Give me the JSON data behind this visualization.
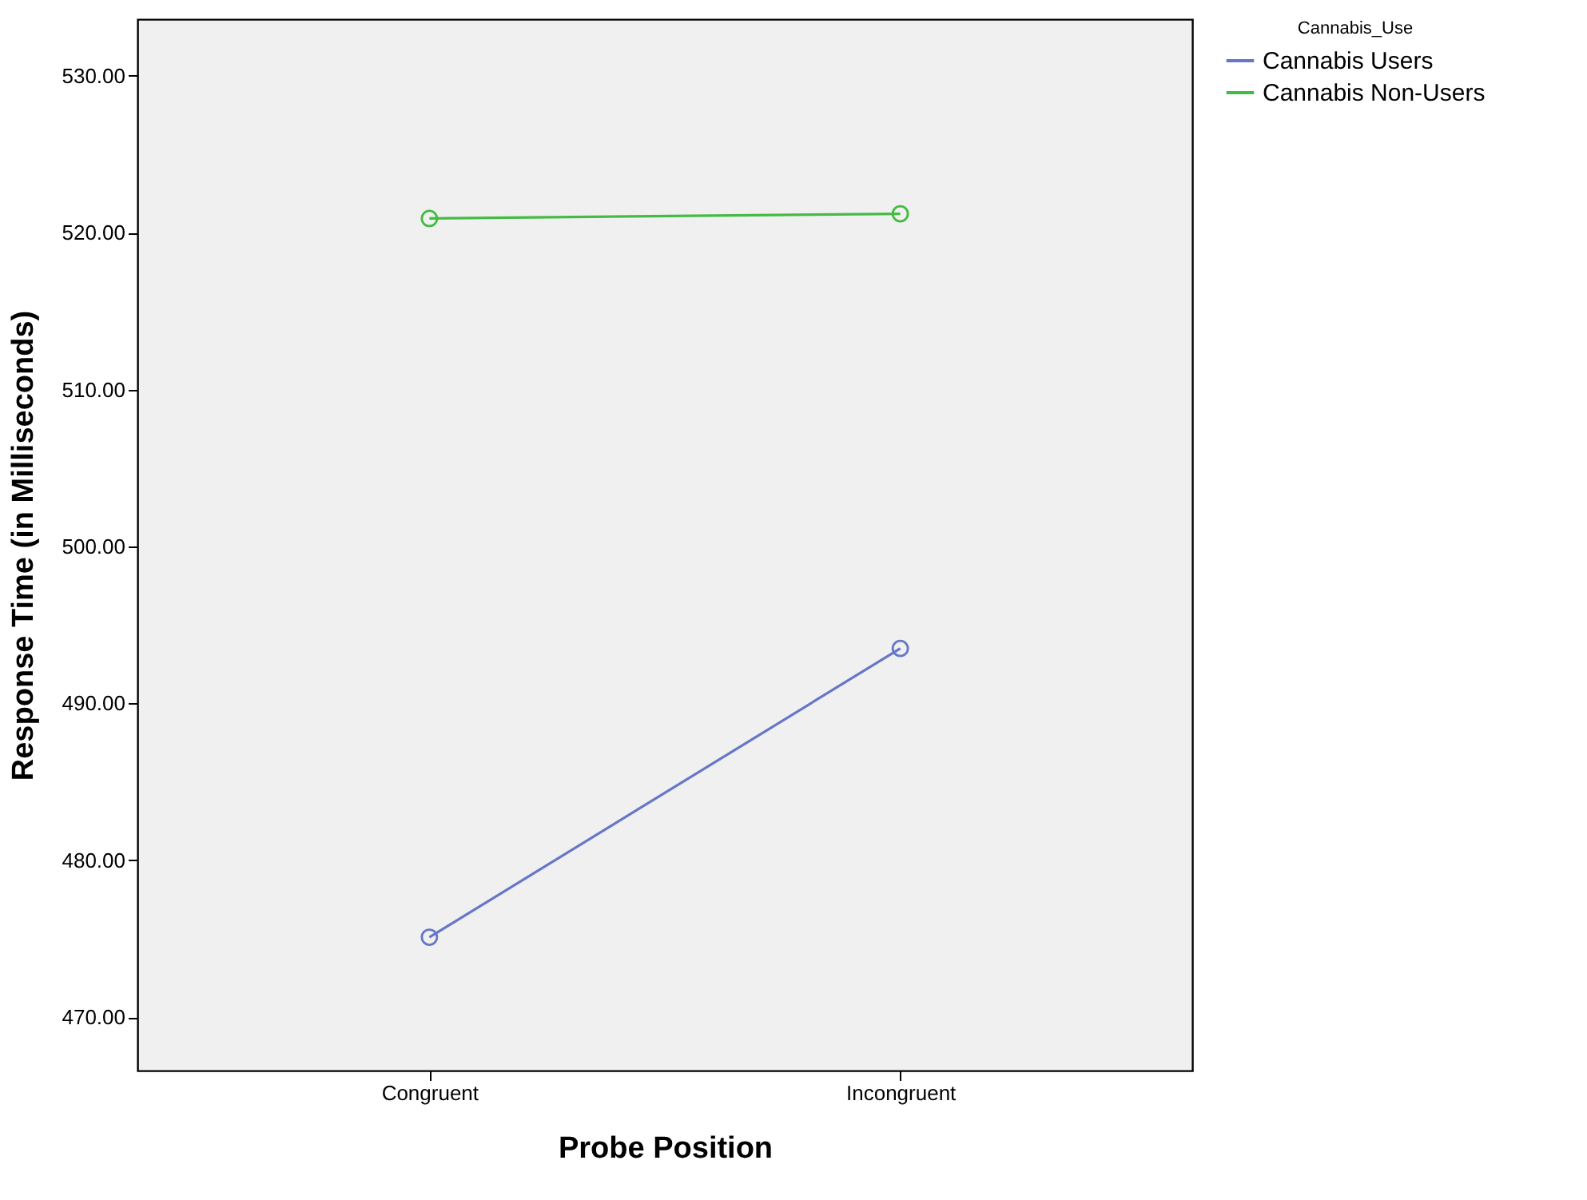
{
  "chart_data": {
    "type": "line",
    "xlabel": "Probe Position",
    "ylabel": "Response Time (in Milliseconds)",
    "legend_title": "Cannabis_Use",
    "categories": [
      "Congruent",
      "Incongruent"
    ],
    "series": [
      {
        "name": "Cannabis Users",
        "color": "#6677c8",
        "values": [
          475.1,
          493.5
        ]
      },
      {
        "name": "Cannabis Non-Users",
        "color": "#44bb44",
        "values": [
          520.9,
          521.2
        ]
      }
    ],
    "ylim": [
      466.6,
      533.6
    ],
    "yticks": [
      {
        "value": 470,
        "label": "470.00"
      },
      {
        "value": 480,
        "label": "480.00"
      },
      {
        "value": 490,
        "label": "490.00"
      },
      {
        "value": 500,
        "label": "500.00"
      },
      {
        "value": 510,
        "label": "510.00"
      },
      {
        "value": 520,
        "label": "520.00"
      },
      {
        "value": 530,
        "label": "530.00"
      }
    ],
    "grid": false,
    "legend": "top right",
    "marker": "circle",
    "line_style": "solid"
  }
}
